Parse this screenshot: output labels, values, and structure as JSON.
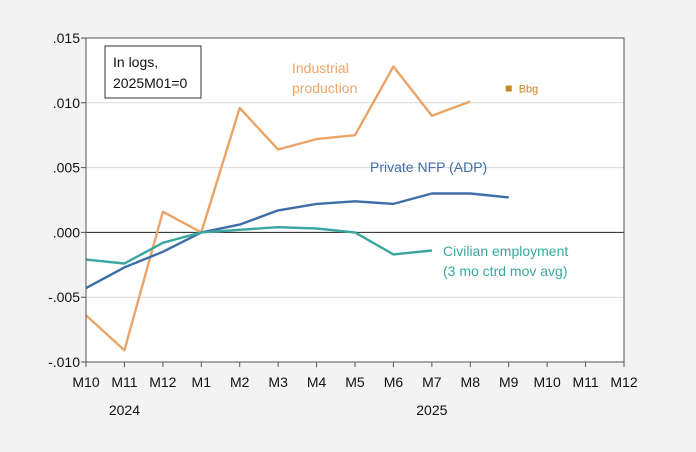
{
  "chart_data": {
    "type": "line",
    "title": "",
    "xlabel": "",
    "ylabel": "",
    "x": [
      "M10",
      "M11",
      "M12",
      "M1",
      "M2",
      "M3",
      "M4",
      "M5",
      "M6",
      "M7",
      "M8",
      "M9",
      "M10",
      "M11",
      "M12"
    ],
    "year_labels": [
      {
        "label": "2024",
        "at": "M11"
      },
      {
        "label": "2025",
        "at": "M7"
      }
    ],
    "ylim": [
      -0.01,
      0.015
    ],
    "yticks": [
      0.015,
      0.01,
      0.005,
      0.0,
      -0.005,
      -0.01
    ],
    "ytick_labels": [
      ".015",
      ".010",
      ".005",
      ".000",
      "-.005",
      "-.010"
    ],
    "grid": true,
    "annotation_box": [
      "In logs,",
      "2025M01=0"
    ],
    "series": [
      {
        "name": "Industrial production",
        "label_lines": [
          "Industrial",
          "production"
        ],
        "color": "#EBA468",
        "values": [
          -0.0064,
          -0.0091,
          0.0016,
          0.0,
          0.0096,
          0.0064,
          0.0072,
          0.0075,
          0.0128,
          0.009,
          0.0101,
          null,
          null,
          null,
          null
        ]
      },
      {
        "name": "Private NFP (ADP)",
        "label_lines": [
          "Private NFP (ADP)"
        ],
        "color": "#3E6DA8",
        "values": [
          -0.0043,
          -0.0027,
          -0.0015,
          0.0,
          0.0006,
          0.0017,
          0.0022,
          0.0024,
          0.0022,
          0.003,
          0.003,
          0.0027,
          null,
          null,
          null
        ]
      },
      {
        "name": "Civilian employment (3 mo ctrd mov avg)",
        "label_lines": [
          "Civilian employment",
          "(3 mo ctrd mov avg)"
        ],
        "color": "#3AA6A0",
        "values": [
          -0.0021,
          -0.0024,
          -0.0008,
          0.0,
          0.0002,
          0.0004,
          0.0003,
          0.0,
          -0.0017,
          -0.0014,
          null,
          null,
          null,
          null,
          null
        ]
      }
    ],
    "points": [
      {
        "name": "Bbg",
        "x": "M9",
        "y": 0.0111,
        "color": "#C8861F"
      }
    ]
  }
}
